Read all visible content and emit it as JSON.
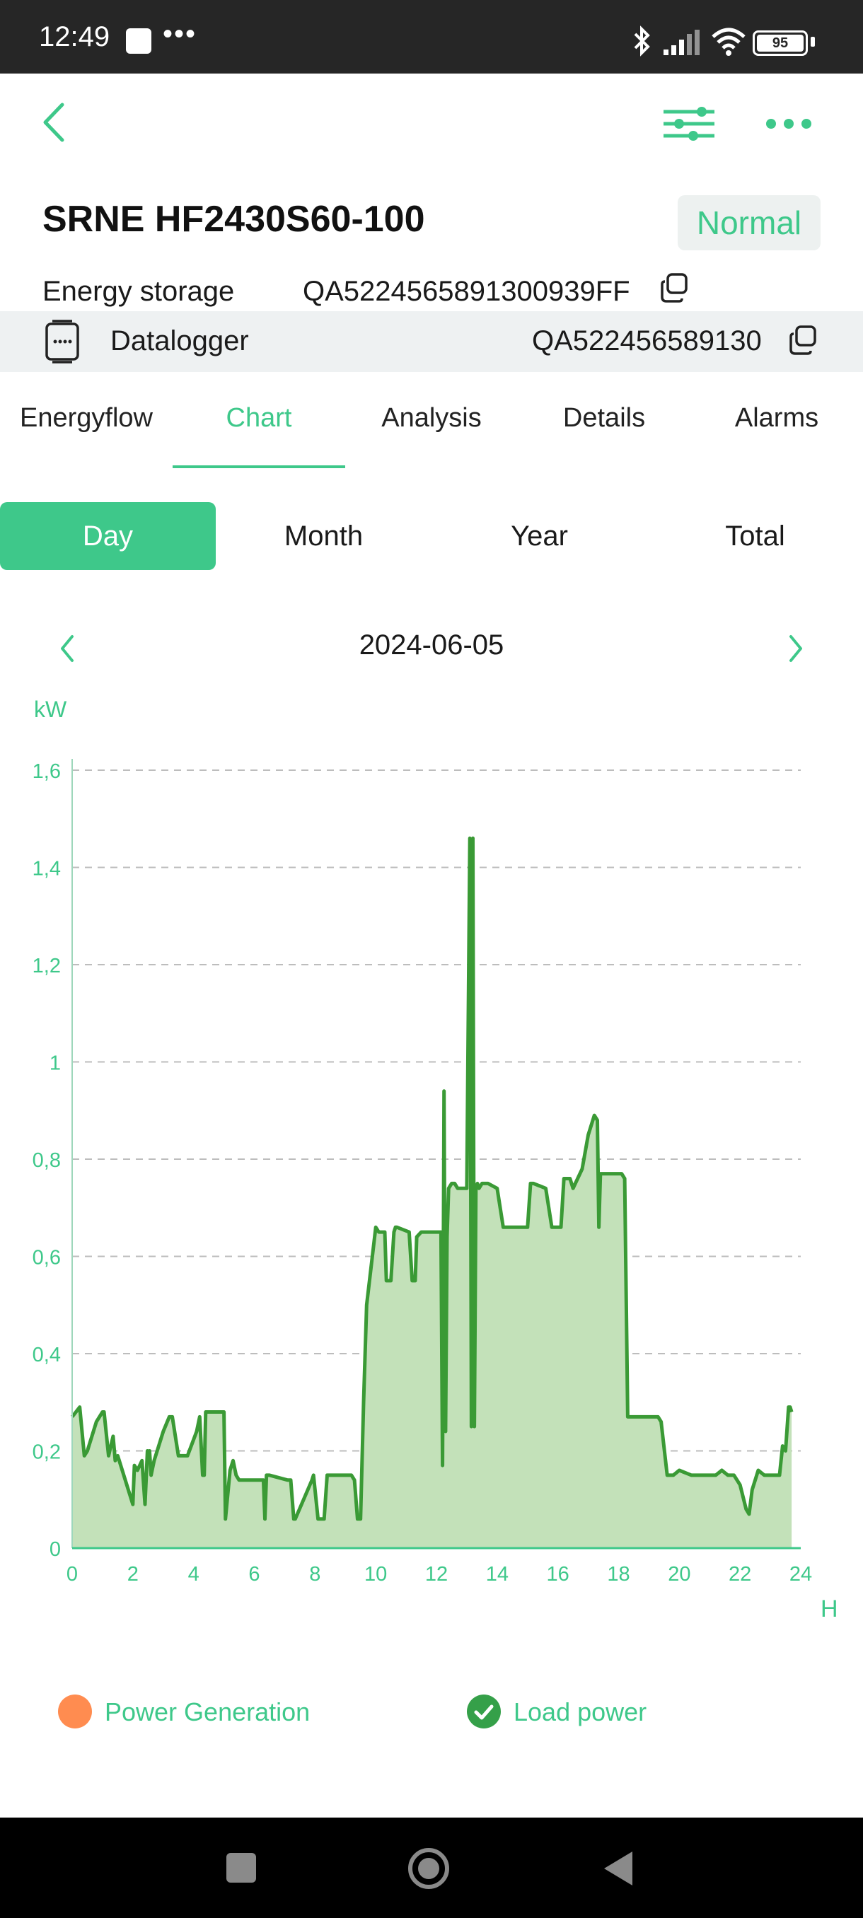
{
  "status_bar": {
    "time": "12:49",
    "dots": "•••",
    "battery": "95"
  },
  "header": {
    "back_icon": "chevron-left-icon",
    "filter_icon": "sliders-icon",
    "more_icon": "more-horizontal-icon"
  },
  "device": {
    "name": "SRNE HF2430S60-100",
    "status": "Normal",
    "type_label": "Energy storage",
    "serial": "QA5224565891300939FF",
    "datalogger_label": "Datalogger",
    "datalogger_serial": "QA522456589130"
  },
  "tabs": [
    "Energyflow",
    "Chart",
    "Analysis",
    "Details",
    "Alarms"
  ],
  "active_tab": "Chart",
  "periods": [
    "Day",
    "Month",
    "Year",
    "Total"
  ],
  "active_period": "Day",
  "date": "2024-06-05",
  "colors": {
    "accent": "#3ec88a",
    "line": "#3a9a35",
    "area": "#c3e1b9",
    "generation": "#ff8c50"
  },
  "chart_data": {
    "type": "area",
    "ylabel": "kW",
    "xlabel": "H",
    "xlim": [
      0,
      24
    ],
    "ylim": [
      0,
      1.6
    ],
    "x_ticks": [
      "0",
      "2",
      "4",
      "6",
      "8",
      "10",
      "12",
      "14",
      "16",
      "18",
      "20",
      "22",
      "24"
    ],
    "y_ticks": [
      "0",
      "0,2",
      "0,4",
      "0,6",
      "0,8",
      "1",
      "1,2",
      "1,4",
      "1,6"
    ],
    "grid": true,
    "legend": "bottom",
    "series": [
      {
        "name": "Power Generation",
        "values": []
      },
      {
        "name": "Load power",
        "x": [
          0,
          0.25,
          0.4,
          0.5,
          0.8,
          1.0,
          1.05,
          1.2,
          1.35,
          1.42,
          1.5,
          1.6,
          2.0,
          2.05,
          2.15,
          2.3,
          2.4,
          2.48,
          2.5,
          2.55,
          2.6,
          2.7,
          3.0,
          3.2,
          3.3,
          3.5,
          3.8,
          4.1,
          4.2,
          4.3,
          4.35,
          4.4,
          5.0,
          5.05,
          5.2,
          5.3,
          5.4,
          5.5,
          6.3,
          6.35,
          6.4,
          6.5,
          7.1,
          7.2,
          7.3,
          7.35,
          7.9,
          7.95,
          8.1,
          8.3,
          8.4,
          8.5,
          9.2,
          9.3,
          9.4,
          9.5,
          9.6,
          9.7,
          10.0,
          10.1,
          10.3,
          10.35,
          10.5,
          10.6,
          10.65,
          10.7,
          11.1,
          11.2,
          11.3,
          11.35,
          11.5,
          11.6,
          12.15,
          12.2,
          12.25,
          12.3,
          12.35,
          12.4,
          12.5,
          12.6,
          12.7,
          12.8,
          13.0,
          13.1,
          13.15,
          13.2,
          13.25,
          13.3,
          13.35,
          13.4,
          13.5,
          13.7,
          14.0,
          14.2,
          14.4,
          14.5,
          15.0,
          15.1,
          15.2,
          15.6,
          15.8,
          16.0,
          16.1,
          16.2,
          16.4,
          16.5,
          16.8,
          17.0,
          17.2,
          17.3,
          17.35,
          17.4,
          17.5,
          17.6,
          18.0,
          18.1,
          18.2,
          18.3,
          19.0,
          19.3,
          19.4,
          19.6,
          19.8,
          20.0,
          20.4,
          20.6,
          20.8,
          21.2,
          21.4,
          21.6,
          21.8,
          22.0,
          22.2,
          22.3,
          22.4,
          22.6,
          22.8,
          23.0,
          23.2,
          23.3,
          23.4,
          23.5,
          23.6,
          23.65,
          23.7
        ],
        "values": [
          0.27,
          0.29,
          0.19,
          0.2,
          0.26,
          0.28,
          0.28,
          0.19,
          0.23,
          0.18,
          0.19,
          0.17,
          0.09,
          0.17,
          0.16,
          0.18,
          0.09,
          0.2,
          0.18,
          0.2,
          0.15,
          0.18,
          0.24,
          0.27,
          0.27,
          0.19,
          0.19,
          0.24,
          0.27,
          0.15,
          0.15,
          0.28,
          0.28,
          0.06,
          0.16,
          0.18,
          0.15,
          0.14,
          0.14,
          0.06,
          0.15,
          0.15,
          0.14,
          0.14,
          0.06,
          0.06,
          0.14,
          0.15,
          0.06,
          0.06,
          0.15,
          0.15,
          0.15,
          0.14,
          0.06,
          0.06,
          0.3,
          0.5,
          0.66,
          0.65,
          0.65,
          0.55,
          0.55,
          0.65,
          0.66,
          0.66,
          0.65,
          0.55,
          0.55,
          0.64,
          0.65,
          0.65,
          0.65,
          0.17,
          0.94,
          0.24,
          0.64,
          0.74,
          0.75,
          0.75,
          0.74,
          0.74,
          0.74,
          1.46,
          0.25,
          1.46,
          0.25,
          0.74,
          0.75,
          0.74,
          0.75,
          0.75,
          0.74,
          0.66,
          0.66,
          0.66,
          0.66,
          0.75,
          0.75,
          0.74,
          0.66,
          0.66,
          0.66,
          0.76,
          0.76,
          0.74,
          0.78,
          0.85,
          0.89,
          0.88,
          0.66,
          0.77,
          0.77,
          0.77,
          0.77,
          0.77,
          0.76,
          0.27,
          0.27,
          0.27,
          0.26,
          0.15,
          0.15,
          0.16,
          0.15,
          0.15,
          0.15,
          0.15,
          0.16,
          0.15,
          0.15,
          0.13,
          0.08,
          0.07,
          0.12,
          0.16,
          0.15,
          0.15,
          0.15,
          0.15,
          0.21,
          0.2,
          0.29,
          0.29,
          0.28
        ]
      }
    ]
  },
  "legend": {
    "generation_label": "Power Generation",
    "load_label": "Load power"
  },
  "nav": {
    "recent_icon": "square-icon",
    "home_icon": "circle-home-icon",
    "back_icon": "triangle-back-icon"
  }
}
